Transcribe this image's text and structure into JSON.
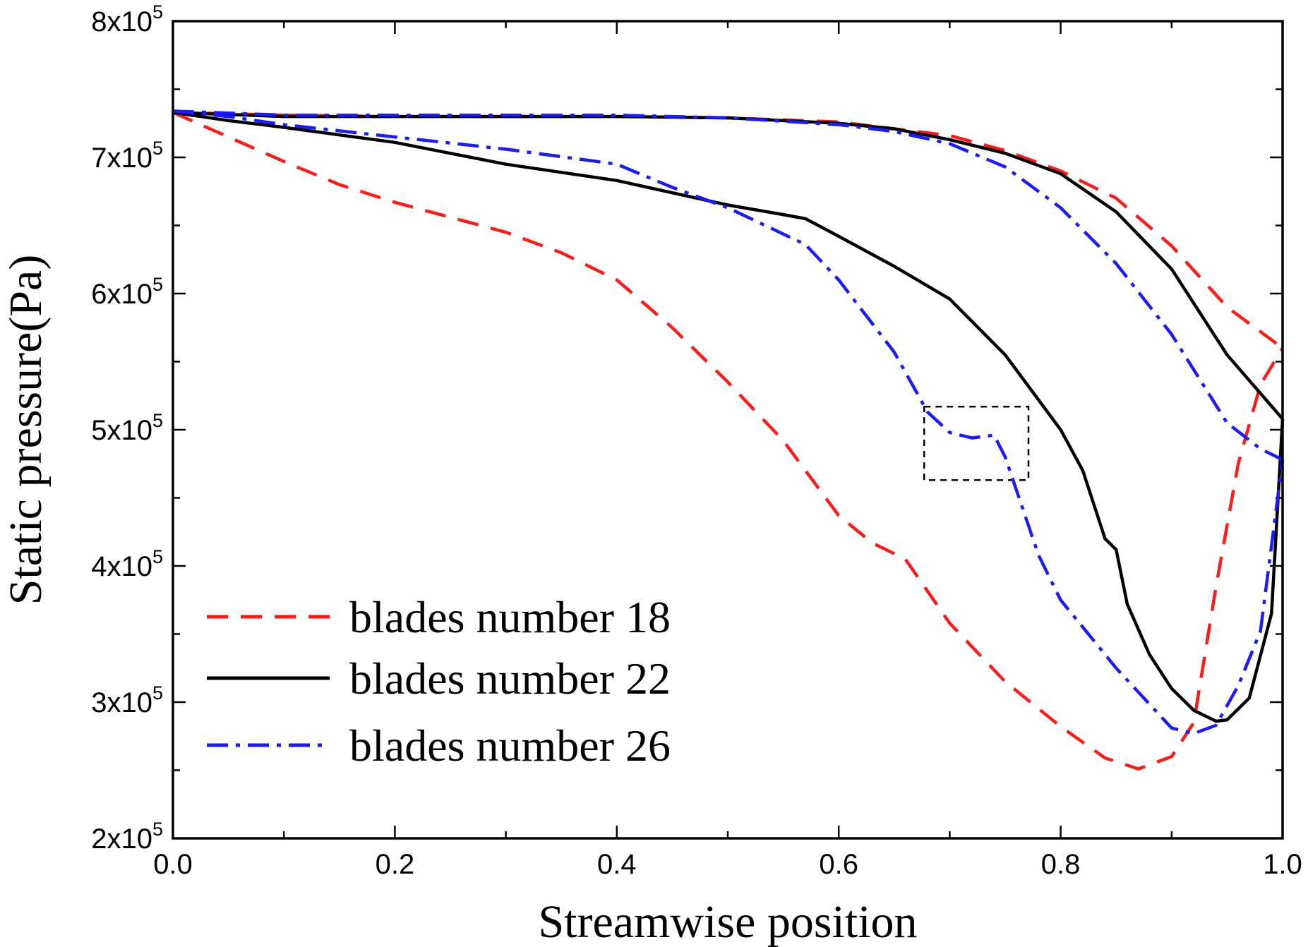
{
  "chart_data": {
    "type": "line",
    "title": "",
    "xlabel": "Streamwise position",
    "ylabel": "Static pressure(Pa)",
    "xlim": [
      0.0,
      1.0
    ],
    "ylim": [
      200000,
      800000
    ],
    "x_ticks": [
      {
        "value": 0.0,
        "label": "0.0"
      },
      {
        "value": 0.2,
        "label": "0.2"
      },
      {
        "value": 0.4,
        "label": "0.4"
      },
      {
        "value": 0.6,
        "label": "0.6"
      },
      {
        "value": 0.8,
        "label": "0.8"
      },
      {
        "value": 1.0,
        "label": "1.0"
      }
    ],
    "y_ticks": [
      {
        "value": 200000,
        "base": "2x10",
        "exp": "5"
      },
      {
        "value": 300000,
        "base": "3x10",
        "exp": "5"
      },
      {
        "value": 400000,
        "base": "4x10",
        "exp": "5"
      },
      {
        "value": 500000,
        "base": "5x10",
        "exp": "5"
      },
      {
        "value": 600000,
        "base": "6x10",
        "exp": "5"
      },
      {
        "value": 700000,
        "base": "7x10",
        "exp": "5"
      },
      {
        "value": 800000,
        "base": "8x10",
        "exp": "5"
      }
    ],
    "grid": false,
    "legend_position": "bottom-left",
    "series": [
      {
        "name": "blades number 18",
        "color": "#ff1a1a",
        "style": "dash",
        "curves": [
          {
            "part": "upper",
            "points": [
              [
                0.0,
                733000
              ],
              [
                0.1,
                731000
              ],
              [
                0.2,
                730000
              ],
              [
                0.3,
                730000
              ],
              [
                0.4,
                730000
              ],
              [
                0.5,
                729000
              ],
              [
                0.6,
                726000
              ],
              [
                0.7,
                716000
              ],
              [
                0.75,
                705000
              ],
              [
                0.8,
                690000
              ],
              [
                0.85,
                670000
              ],
              [
                0.9,
                635000
              ],
              [
                0.95,
                590000
              ],
              [
                1.0,
                560000
              ]
            ]
          },
          {
            "part": "lower",
            "points": [
              [
                0.0,
                733000
              ],
              [
                0.05,
                715000
              ],
              [
                0.1,
                697000
              ],
              [
                0.15,
                680000
              ],
              [
                0.2,
                667000
              ],
              [
                0.3,
                645000
              ],
              [
                0.35,
                630000
              ],
              [
                0.4,
                610000
              ],
              [
                0.45,
                575000
              ],
              [
                0.5,
                535000
              ],
              [
                0.55,
                492000
              ],
              [
                0.6,
                437000
              ],
              [
                0.63,
                417000
              ],
              [
                0.66,
                405000
              ],
              [
                0.7,
                358000
              ],
              [
                0.75,
                315000
              ],
              [
                0.8,
                282000
              ],
              [
                0.84,
                259000
              ],
              [
                0.87,
                251000
              ],
              [
                0.9,
                260000
              ],
              [
                0.92,
                285000
              ],
              [
                0.94,
                385000
              ],
              [
                0.96,
                475000
              ],
              [
                0.98,
                533000
              ],
              [
                1.0,
                560000
              ]
            ]
          }
        ]
      },
      {
        "name": "blades number 22",
        "color": "#000000",
        "style": "solid",
        "curves": [
          {
            "part": "upper",
            "points": [
              [
                0.0,
                733000
              ],
              [
                0.1,
                730000
              ],
              [
                0.2,
                730000
              ],
              [
                0.3,
                730000
              ],
              [
                0.4,
                730000
              ],
              [
                0.5,
                729000
              ],
              [
                0.6,
                725000
              ],
              [
                0.65,
                721000
              ],
              [
                0.7,
                713000
              ],
              [
                0.75,
                703000
              ],
              [
                0.8,
                688000
              ],
              [
                0.85,
                660000
              ],
              [
                0.9,
                618000
              ],
              [
                0.95,
                555000
              ],
              [
                1.0,
                508000
              ]
            ]
          },
          {
            "part": "lower",
            "points": [
              [
                0.0,
                733000
              ],
              [
                0.05,
                727000
              ],
              [
                0.1,
                722000
              ],
              [
                0.2,
                711000
              ],
              [
                0.3,
                695000
              ],
              [
                0.4,
                683000
              ],
              [
                0.5,
                665000
              ],
              [
                0.55,
                658000
              ],
              [
                0.57,
                655000
              ],
              [
                0.6,
                642000
              ],
              [
                0.65,
                620000
              ],
              [
                0.7,
                596000
              ],
              [
                0.75,
                555000
              ],
              [
                0.8,
                500000
              ],
              [
                0.82,
                470000
              ],
              [
                0.84,
                420000
              ],
              [
                0.85,
                412000
              ],
              [
                0.86,
                372000
              ],
              [
                0.88,
                335000
              ],
              [
                0.9,
                310000
              ],
              [
                0.92,
                294000
              ],
              [
                0.94,
                286000
              ],
              [
                0.95,
                287000
              ],
              [
                0.97,
                303000
              ],
              [
                0.99,
                365000
              ],
              [
                1.0,
                508000
              ]
            ]
          }
        ]
      },
      {
        "name": "blades number 26",
        "color": "#1a1aff",
        "style": "dashdot",
        "curves": [
          {
            "part": "upper",
            "points": [
              [
                0.0,
                734000
              ],
              [
                0.1,
                731000
              ],
              [
                0.2,
                731000
              ],
              [
                0.3,
                731000
              ],
              [
                0.4,
                731000
              ],
              [
                0.5,
                729000
              ],
              [
                0.6,
                724000
              ],
              [
                0.65,
                719000
              ],
              [
                0.7,
                710000
              ],
              [
                0.75,
                693000
              ],
              [
                0.8,
                663000
              ],
              [
                0.85,
                622000
              ],
              [
                0.9,
                570000
              ],
              [
                0.95,
                505000
              ],
              [
                0.98,
                486000
              ],
              [
                1.0,
                478000
              ]
            ]
          },
          {
            "part": "lower",
            "points": [
              [
                0.0,
                734000
              ],
              [
                0.05,
                730000
              ],
              [
                0.1,
                724000
              ],
              [
                0.2,
                715000
              ],
              [
                0.3,
                706000
              ],
              [
                0.4,
                695000
              ],
              [
                0.45,
                678000
              ],
              [
                0.5,
                663000
              ],
              [
                0.57,
                636000
              ],
              [
                0.6,
                610000
              ],
              [
                0.65,
                557000
              ],
              [
                0.68,
                513000
              ],
              [
                0.7,
                498000
              ],
              [
                0.72,
                494000
              ],
              [
                0.74,
                496000
              ],
              [
                0.75,
                480000
              ],
              [
                0.78,
                408000
              ],
              [
                0.8,
                375000
              ],
              [
                0.85,
                325000
              ],
              [
                0.9,
                281000
              ],
              [
                0.92,
                277000
              ],
              [
                0.94,
                283000
              ],
              [
                0.96,
                312000
              ],
              [
                0.98,
                352000
              ],
              [
                1.0,
                478000
              ]
            ]
          }
        ]
      }
    ],
    "annotations": [
      {
        "type": "dashed-box",
        "x_range": [
          0.677,
          0.771
        ],
        "y_range": [
          463000,
          517000
        ]
      }
    ]
  }
}
